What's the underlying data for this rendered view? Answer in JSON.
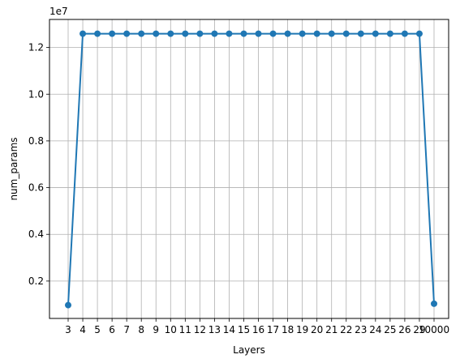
{
  "chart_data": {
    "type": "line",
    "xlabel": "Layers",
    "ylabel": "num_params",
    "y_offset_label": "1e7",
    "grid": true,
    "marker": "circle",
    "colors": {
      "line": "#1f77b4",
      "grid": "#b0b0b0",
      "axes": "#000000"
    },
    "categories": [
      "3",
      "4",
      "5",
      "6",
      "7",
      "8",
      "9",
      "10",
      "11",
      "12",
      "13",
      "14",
      "15",
      "16",
      "17",
      "18",
      "19",
      "20",
      "21",
      "22",
      "23",
      "24",
      "25",
      "26",
      "29",
      "10000"
    ],
    "values": [
      0.097,
      1.259,
      1.259,
      1.259,
      1.259,
      1.259,
      1.259,
      1.259,
      1.259,
      1.259,
      1.259,
      1.259,
      1.259,
      1.259,
      1.259,
      1.259,
      1.259,
      1.259,
      1.259,
      1.259,
      1.259,
      1.259,
      1.259,
      1.259,
      1.259,
      0.103
    ],
    "ylim": [
      0.04,
      1.32
    ],
    "yticks": [
      0.2,
      0.4,
      0.6,
      0.8,
      1.0,
      1.2
    ],
    "ytick_labels": [
      "0.2",
      "0.4",
      "0.6",
      "0.8",
      "1.0",
      "1.2"
    ]
  }
}
